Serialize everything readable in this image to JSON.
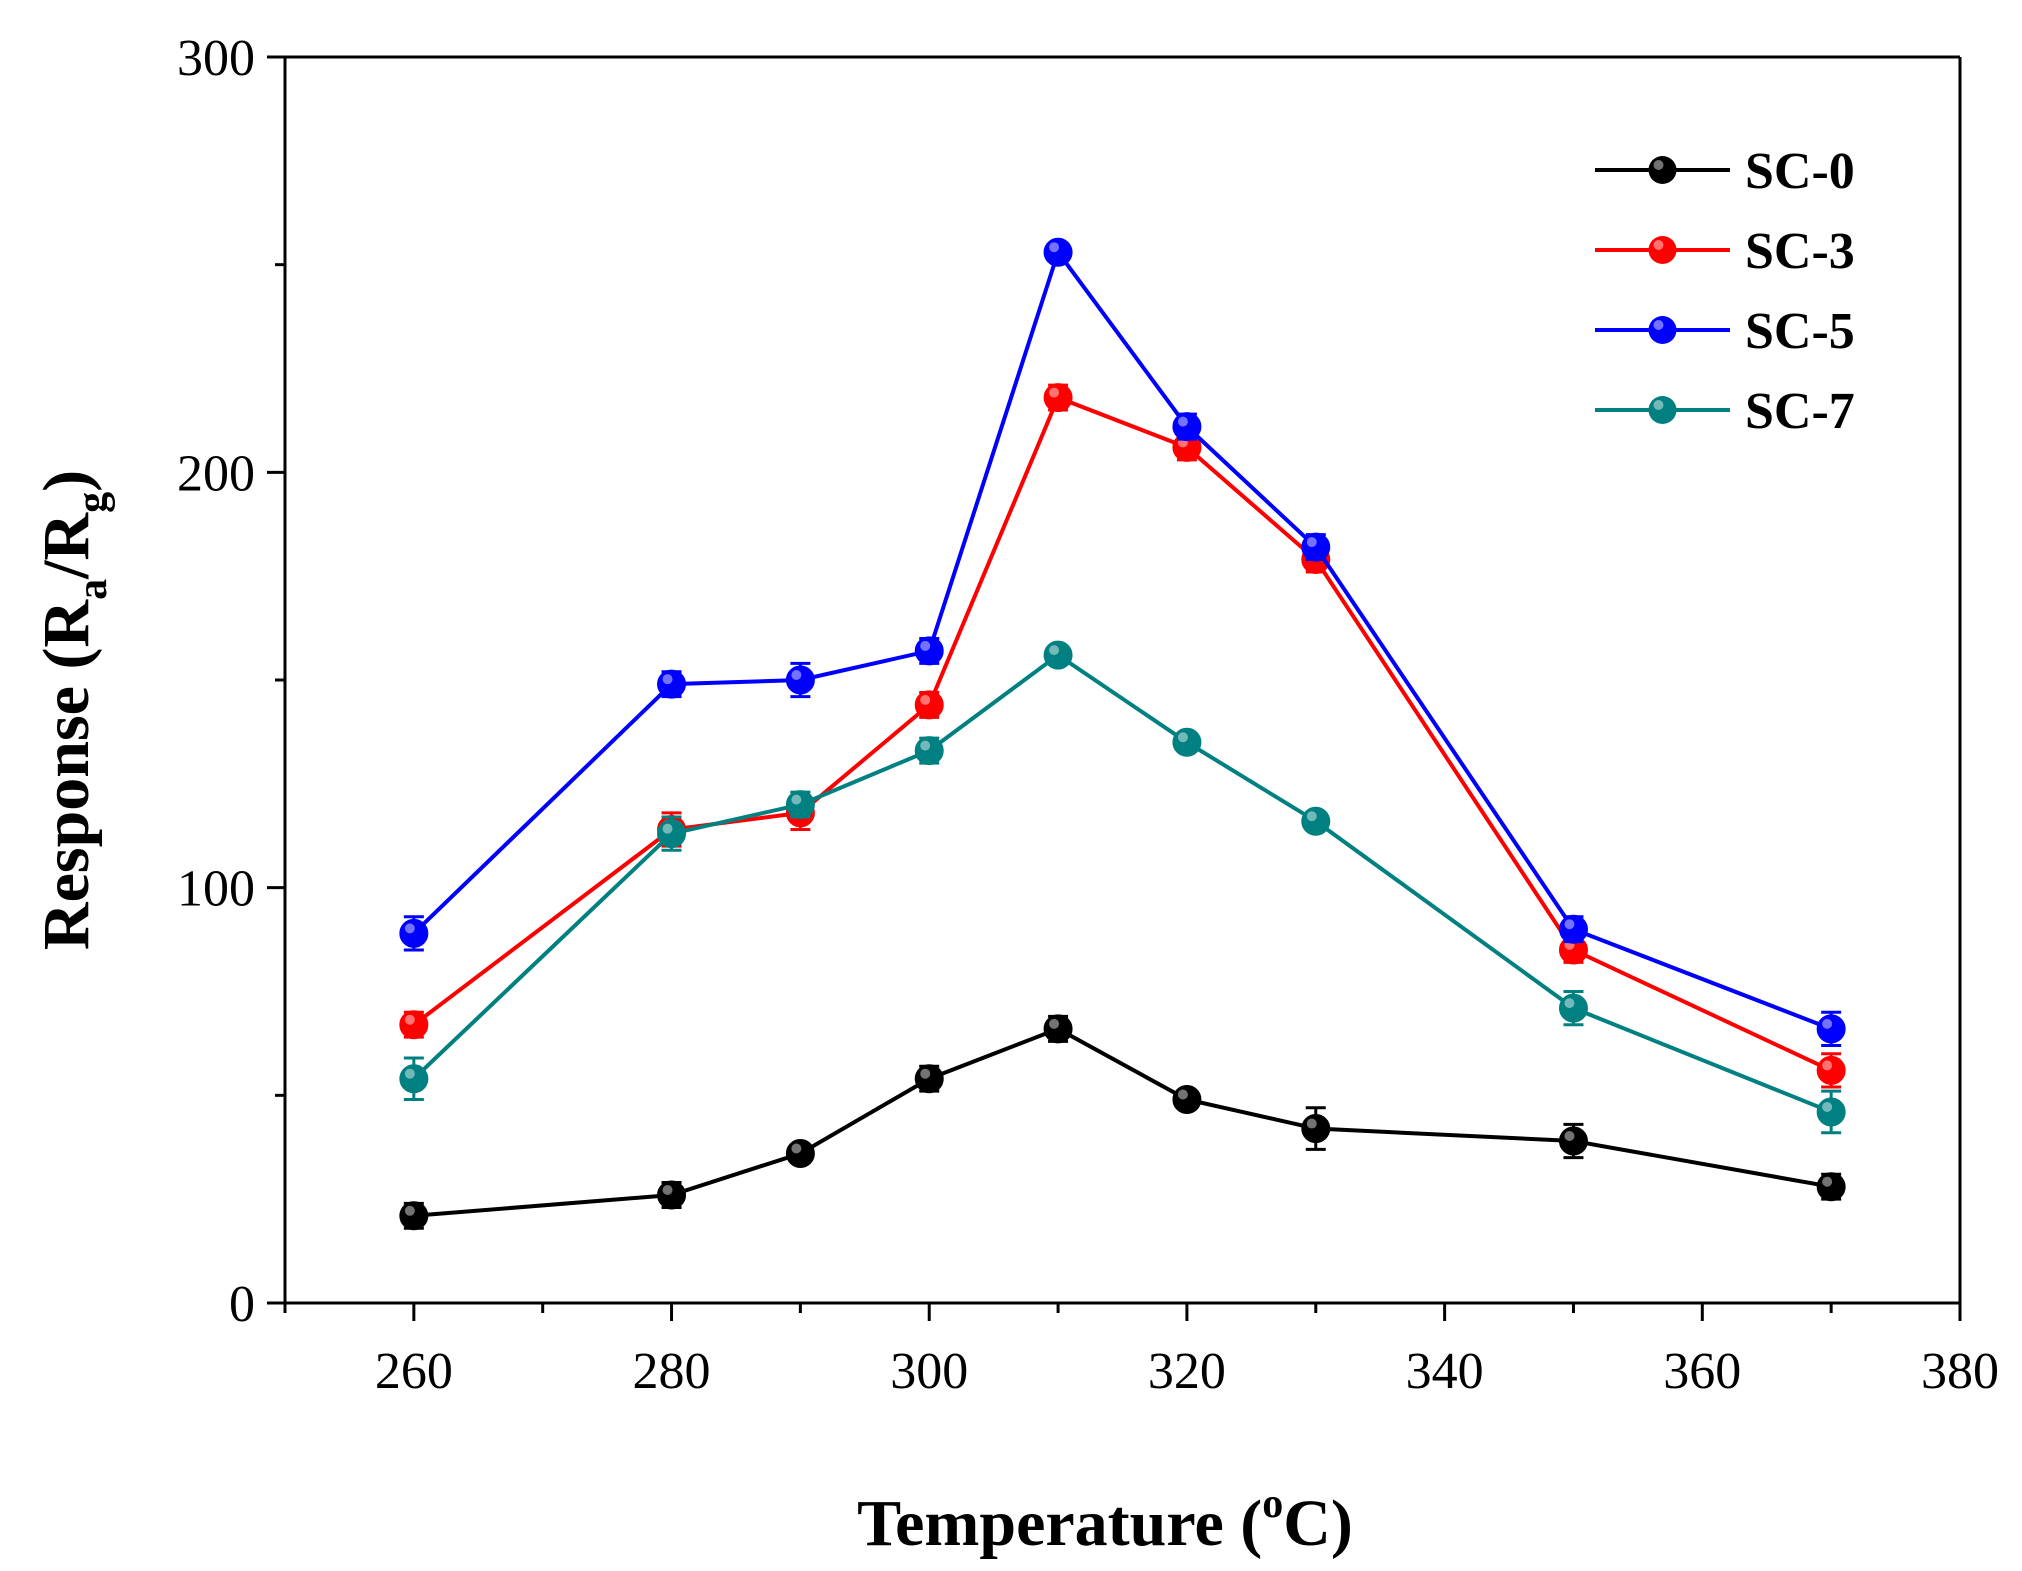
{
  "chart_data": {
    "type": "line",
    "title": "",
    "xlabel": "Temperature (",
    "xlabel_sup": "o",
    "xlabel_tail": "C)",
    "ylabel": "Response (R",
    "ylabel_sub_a": "a",
    "ylabel_mid": "/R",
    "ylabel_sub_g": "g",
    "ylabel_tail": ")",
    "xlim": [
      250,
      380
    ],
    "ylim": [
      0,
      300
    ],
    "x_ticks": [
      260,
      280,
      300,
      320,
      340,
      360,
      380
    ],
    "x_tick_labels": [
      "260",
      "280",
      "300",
      "320",
      "340",
      "360",
      "380"
    ],
    "x_minor_ticks": [
      250,
      270,
      290,
      310,
      330,
      350,
      370
    ],
    "y_ticks": [
      0,
      100,
      200,
      300
    ],
    "y_tick_labels": [
      "0",
      "100",
      "200",
      "300"
    ],
    "y_minor_ticks": [
      50,
      150,
      250
    ],
    "legend_position": "top-right",
    "x": [
      260,
      280,
      290,
      300,
      310,
      320,
      330,
      350,
      370
    ],
    "series": [
      {
        "name": "SC-0",
        "color": "#000000",
        "values": [
          21,
          26,
          36,
          54,
          66,
          49,
          42,
          39,
          28
        ],
        "errors": [
          3,
          3,
          2,
          3,
          3,
          2,
          5,
          4,
          3
        ]
      },
      {
        "name": "SC-3",
        "color": "#ff0000",
        "values": [
          67,
          114,
          118,
          144,
          218,
          206,
          179,
          85,
          56
        ],
        "errors": [
          3,
          4,
          4,
          3,
          3,
          3,
          3,
          3,
          4
        ]
      },
      {
        "name": "SC-5",
        "color": "#0000ff",
        "values": [
          89,
          149,
          150,
          157,
          253,
          211,
          182,
          90,
          66
        ],
        "errors": [
          4,
          3,
          4,
          3,
          2,
          3,
          3,
          3,
          4
        ]
      },
      {
        "name": "SC-7",
        "color": "#008080",
        "values": [
          54,
          113,
          120,
          133,
          156,
          135,
          116,
          71,
          46
        ],
        "errors": [
          5,
          4,
          3,
          3,
          2,
          2,
          2,
          4,
          5
        ]
      }
    ]
  }
}
